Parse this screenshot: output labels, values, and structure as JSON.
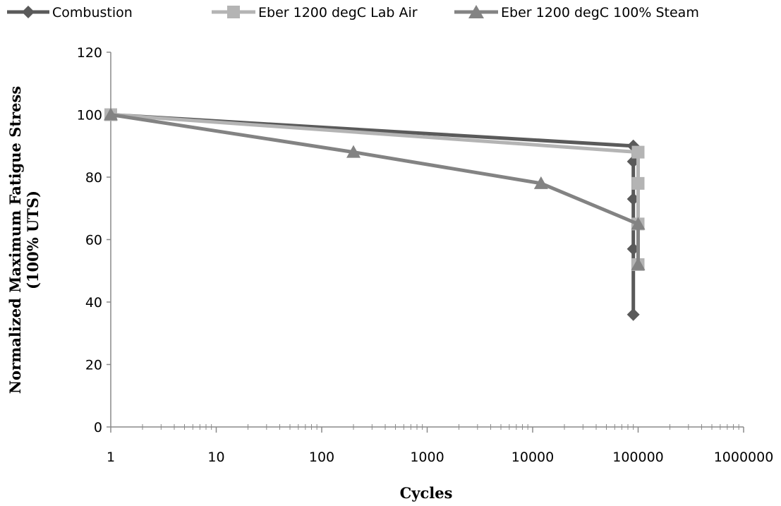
{
  "chart_data": {
    "type": "line",
    "xlabel": "Cycles",
    "ylabel_lines": [
      "Normalized Maximum Fatigue Stress",
      "(100% UTS)"
    ],
    "x_scale": "log",
    "xlim": [
      1,
      1000000
    ],
    "ylim": [
      0,
      120
    ],
    "x_ticks": [
      "1",
      "10",
      "100",
      "1000",
      "10000",
      "100000",
      "1000000"
    ],
    "y_ticks": [
      "0",
      "20",
      "40",
      "60",
      "80",
      "100",
      "120"
    ],
    "grid": false,
    "legend_position": "top",
    "series": [
      {
        "name": "Combustion",
        "color": "#5a5a5a",
        "marker": "diamond",
        "points": [
          [
            1,
            100
          ],
          [
            90000,
            90
          ],
          [
            90000,
            85
          ],
          [
            90000,
            73
          ],
          [
            90000,
            57
          ],
          [
            90000,
            36
          ]
        ]
      },
      {
        "name": "Eber 1200 degC Lab Air",
        "color": "#b4b4b4",
        "marker": "square",
        "points": [
          [
            1,
            100
          ],
          [
            100000,
            88
          ],
          [
            100000,
            78
          ],
          [
            100000,
            65
          ],
          [
            100000,
            52
          ]
        ]
      },
      {
        "name": "Eber 1200 degC 100% Steam",
        "color": "#838383",
        "marker": "triangle",
        "points": [
          [
            1,
            100
          ],
          [
            200,
            88
          ],
          [
            12000,
            78
          ],
          [
            100000,
            65
          ],
          [
            100000,
            52
          ]
        ]
      }
    ]
  }
}
